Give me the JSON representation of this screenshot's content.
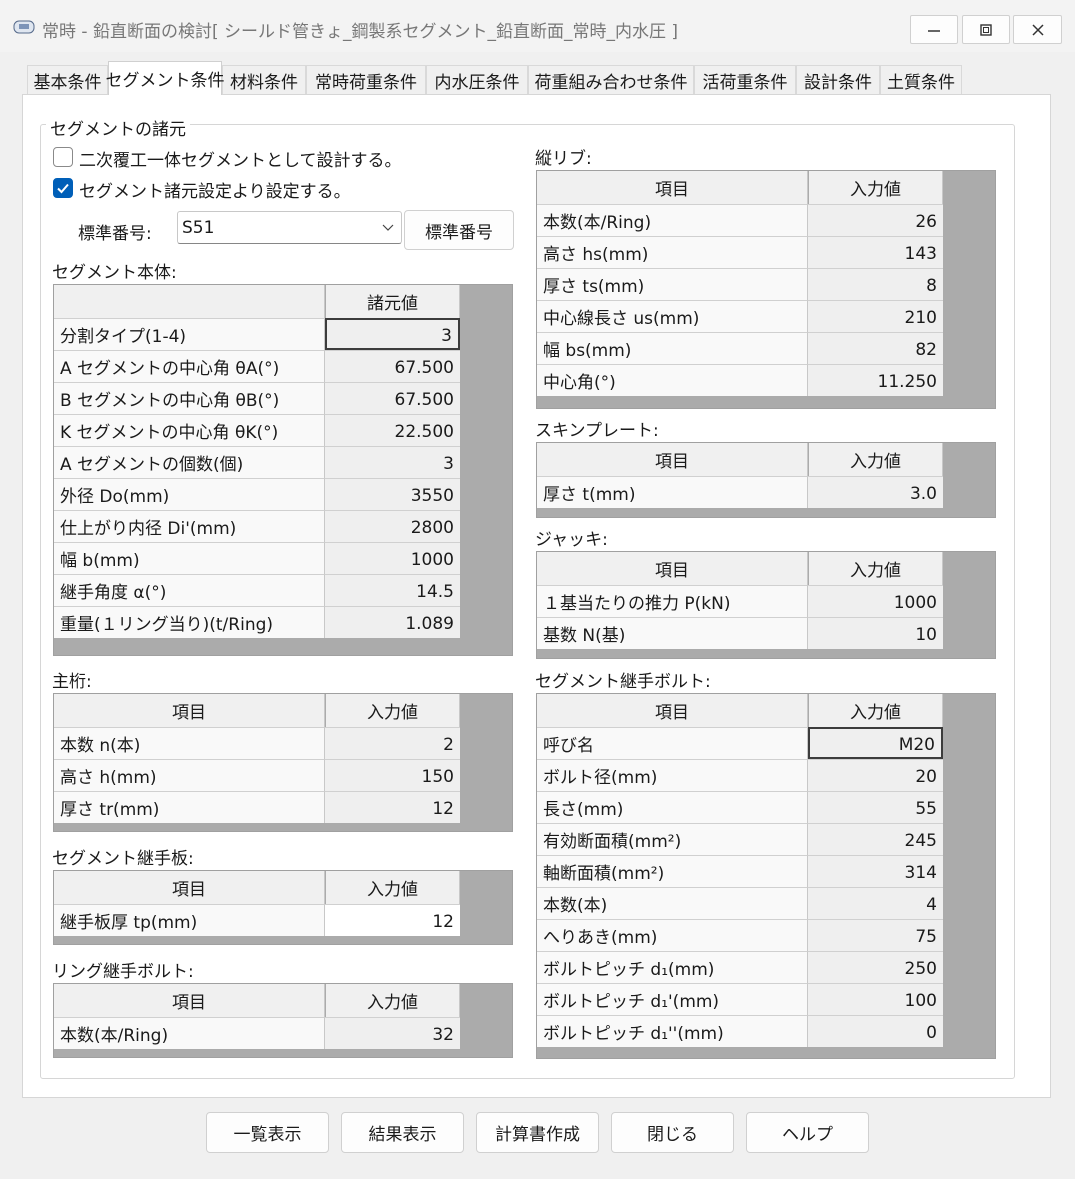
{
  "window": {
    "title": "常時 - 鉛直断面の検討[ シールド管きょ_鋼製系セグメント_鉛直断面_常時_内水圧 ]"
  },
  "tabs": [
    "基本条件",
    "セグメント条件",
    "材料条件",
    "常時荷重条件",
    "内水圧条件",
    "荷重組み合わせ条件",
    "活荷重条件",
    "設計条件",
    "土質条件"
  ],
  "group_title": "セグメントの諸元",
  "checkboxes": [
    {
      "label": "二次覆工一体セグメントとして設計する。",
      "checked": false
    },
    {
      "label": "セグメント諸元設定より設定する。",
      "checked": true
    }
  ],
  "standard_number": {
    "label": "標準番号:",
    "value": "S51",
    "button": "標準番号"
  },
  "tables": {
    "segment_body": {
      "title": "セグメント本体:",
      "header": [
        "諸元値"
      ],
      "rows": [
        [
          "分割タイプ(1-4)",
          "3"
        ],
        [
          "A セグメントの中心角 θA(°)",
          "67.500"
        ],
        [
          "B セグメントの中心角 θB(°)",
          "67.500"
        ],
        [
          "K セグメントの中心角 θK(°)",
          "22.500"
        ],
        [
          "A セグメントの個数(個)",
          "3"
        ],
        [
          "外径 Do(mm)",
          "3550"
        ],
        [
          "仕上がり内径 Di'(mm)",
          "2800"
        ],
        [
          "幅 b(mm)",
          "1000"
        ],
        [
          "継手角度 α(°)",
          "14.5"
        ],
        [
          "重量(１リング当り)(t/Ring)",
          "1.089"
        ]
      ]
    },
    "main_girder": {
      "title": "主桁:",
      "header": [
        "項目",
        "入力値"
      ],
      "rows": [
        [
          "本数 n(本)",
          "2"
        ],
        [
          "高さ h(mm)",
          "150"
        ],
        [
          "厚さ tr(mm)",
          "12"
        ]
      ]
    },
    "joint_plate": {
      "title": "セグメント継手板:",
      "header": [
        "項目",
        "入力値"
      ],
      "rows": [
        [
          "継手板厚 tp(mm)",
          "12"
        ]
      ]
    },
    "ring_bolt": {
      "title": "リング継手ボルト:",
      "header": [
        "項目",
        "入力値"
      ],
      "rows": [
        [
          "本数(本/Ring)",
          "32"
        ]
      ]
    },
    "rib": {
      "title": "縦リブ:",
      "header": [
        "項目",
        "入力値"
      ],
      "rows": [
        [
          "本数(本/Ring)",
          "26"
        ],
        [
          "高さ hs(mm)",
          "143"
        ],
        [
          "厚さ ts(mm)",
          "8"
        ],
        [
          "中心線長さ us(mm)",
          "210"
        ],
        [
          "幅 bs(mm)",
          "82"
        ],
        [
          "中心角(°)",
          "11.250"
        ]
      ]
    },
    "skin_plate": {
      "title": "スキンプレート:",
      "header": [
        "項目",
        "入力値"
      ],
      "rows": [
        [
          "厚さ t(mm)",
          "3.0"
        ]
      ]
    },
    "jack": {
      "title": "ジャッキ:",
      "header": [
        "項目",
        "入力値"
      ],
      "rows": [
        [
          "１基当たりの推力 P(kN)",
          "1000"
        ],
        [
          "基数 N(基)",
          "10"
        ]
      ]
    },
    "segment_bolt": {
      "title": "セグメント継手ボルト:",
      "header": [
        "項目",
        "入力値"
      ],
      "rows": [
        [
          "呼び名",
          "M20"
        ],
        [
          "ボルト径(mm)",
          "20"
        ],
        [
          "長さ(mm)",
          "55"
        ],
        [
          "有効断面積(mm²)",
          "245"
        ],
        [
          "軸断面積(mm²)",
          "314"
        ],
        [
          "本数(本)",
          "4"
        ],
        [
          "へりあき(mm)",
          "75"
        ],
        [
          "ボルトピッチ d₁(mm)",
          "250"
        ],
        [
          "ボルトピッチ d₁'(mm)",
          "100"
        ],
        [
          "ボルトピッチ d₁''(mm)",
          "0"
        ]
      ]
    }
  },
  "buttons": [
    "一覧表示",
    "結果表示",
    "計算書作成",
    "閉じる",
    "ヘルプ"
  ]
}
